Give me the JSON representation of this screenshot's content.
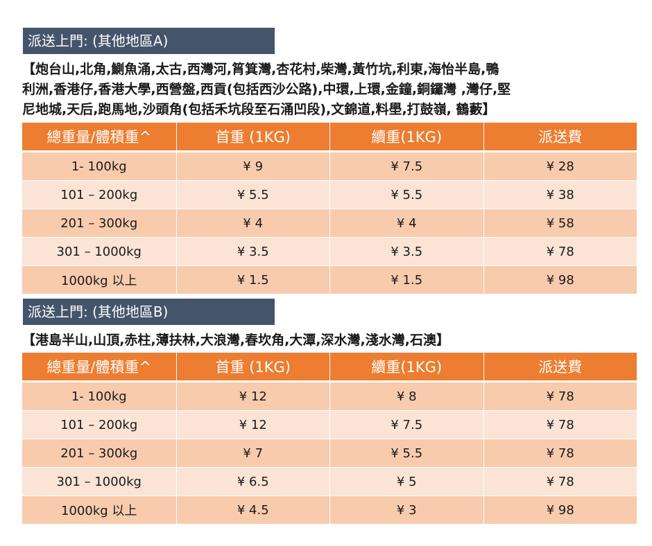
{
  "sections": [
    {
      "title": "派送上門: (其他地區A)",
      "areas": [
        "【炮台山,北角,鰂魚涌,太古,西灣河,筲箕灣,杏花村,柴灣,黃竹坑,利東,海怡半島,鴨",
        "利洲,香港仔,香港大學,西營盤,西貢(包括西沙公路),中環,上環,金鐘,銅鑼灣 ,灣仔,堅",
        "尼地城,天后,跑馬地,沙頭角(包括禾坑段至石涌凹段),文錦道,料壆,打鼓嶺, 鶴藪】"
      ],
      "headers": [
        "總重量/體積重^",
        "首重 (1KG)",
        "續重(1KG)",
        "派送費"
      ],
      "rows": [
        [
          "1- 100kg",
          "¥ 9",
          "¥ 7.5",
          "¥ 28"
        ],
        [
          "101 – 200kg",
          "¥ 5.5",
          "¥ 5.5",
          "¥ 38"
        ],
        [
          "201 – 300kg",
          "¥ 4",
          "¥ 4",
          "¥ 58"
        ],
        [
          "301 – 1000kg",
          "¥ 3.5",
          "¥ 3.5",
          "¥ 78"
        ],
        [
          "1000kg 以上",
          "¥ 1.5",
          "¥ 1.5",
          "¥ 98"
        ]
      ]
    },
    {
      "title": "派送上門: (其他地區B)",
      "areas": [
        "【港島半山,山頂,赤柱,薄扶林,大浪灣,春坎角,大潭,深水灣,淺水灣,石澳】"
      ],
      "headers": [
        "總重量/體積重^",
        "首重 (1KG)",
        "續重(1KG)",
        "派送費"
      ],
      "rows": [
        [
          "1- 100kg",
          "¥ 12",
          "¥ 8",
          "¥ 78"
        ],
        [
          "101 – 200kg",
          "¥ 12",
          "¥ 7.5",
          "¥ 78"
        ],
        [
          "201 – 300kg",
          "¥ 7",
          "¥ 5.5",
          "¥ 78"
        ],
        [
          "301 – 1000kg",
          "¥ 6.5",
          "¥ 5",
          "¥ 78"
        ],
        [
          "1000kg 以上",
          "¥ 4.5",
          "¥ 3",
          "¥ 98"
        ]
      ]
    }
  ],
  "colors": {
    "title_bar": "#44546a",
    "header": "#ed7d31",
    "row_odd": "#f8cbad",
    "row_even": "#fbe4d5"
  }
}
